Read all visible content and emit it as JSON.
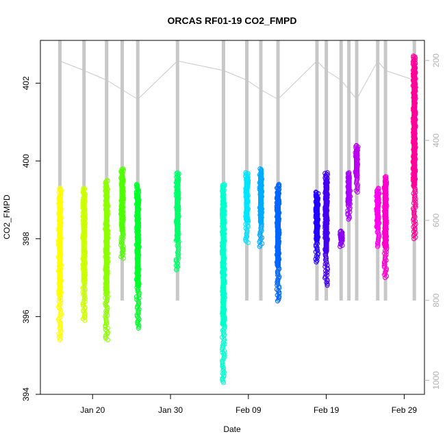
{
  "chart_data": {
    "type": "scatter",
    "title": "ORCAS RF01-19 CO2_FMPD",
    "xlabel": "Date",
    "ylabel": "CO2_FMPD",
    "x_ticks": [
      "Jan 20",
      "Jan 30",
      "Feb 09",
      "Feb 19",
      "Feb 29"
    ],
    "x_tick_days": [
      20,
      30,
      40,
      50,
      60
    ],
    "xlim_days": [
      13.3,
      62.6
    ],
    "ylim": [
      394,
      403.1
    ],
    "y_ticks": [
      394,
      396,
      398,
      400,
      402
    ],
    "right_axis": {
      "label": "",
      "ticks": [
        200,
        400,
        600,
        800,
        1000
      ],
      "reversed": true,
      "range": [
        150,
        1035
      ],
      "color": "#b0b0b0"
    },
    "series": [
      {
        "day": 15.8,
        "min": 395.4,
        "max": 399.3,
        "color": "#ffff00"
      },
      {
        "day": 18.9,
        "min": 395.9,
        "max": 399.3,
        "color": "#ccff00"
      },
      {
        "day": 21.8,
        "min": 395.4,
        "max": 399.5,
        "color": "#8cff00"
      },
      {
        "day": 23.8,
        "min": 397.5,
        "max": 399.8,
        "color": "#4dff00"
      },
      {
        "day": 25.8,
        "min": 395.7,
        "max": 399.4,
        "color": "#00ff2a"
      },
      {
        "day": 30.9,
        "min": 397.2,
        "max": 399.7,
        "color": "#00ff6a"
      },
      {
        "day": 36.8,
        "min": 394.3,
        "max": 399.4,
        "color": "#00ffcc"
      },
      {
        "day": 39.8,
        "min": 397.9,
        "max": 399.7,
        "color": "#00e5ff"
      },
      {
        "day": 41.6,
        "min": 397.8,
        "max": 399.8,
        "color": "#00aaff"
      },
      {
        "day": 43.8,
        "min": 396.4,
        "max": 399.4,
        "color": "#0066ff"
      },
      {
        "day": 48.8,
        "min": 397.4,
        "max": 399.2,
        "color": "#2200ff"
      },
      {
        "day": 50.0,
        "min": 396.8,
        "max": 399.7,
        "color": "#4400ee"
      },
      {
        "day": 51.9,
        "min": 397.8,
        "max": 398.2,
        "color": "#8800ee"
      },
      {
        "day": 52.9,
        "min": 398.5,
        "max": 399.7,
        "color": "#aa00ff"
      },
      {
        "day": 53.9,
        "min": 399.2,
        "max": 400.4,
        "color": "#bb00ee"
      },
      {
        "day": 56.6,
        "min": 397.8,
        "max": 399.3,
        "color": "#ff00ee"
      },
      {
        "day": 57.6,
        "min": 397.0,
        "max": 399.6,
        "color": "#ff00cc"
      },
      {
        "day": 61.3,
        "min": 398.0,
        "max": 402.7,
        "color": "#ff0099"
      }
    ]
  }
}
